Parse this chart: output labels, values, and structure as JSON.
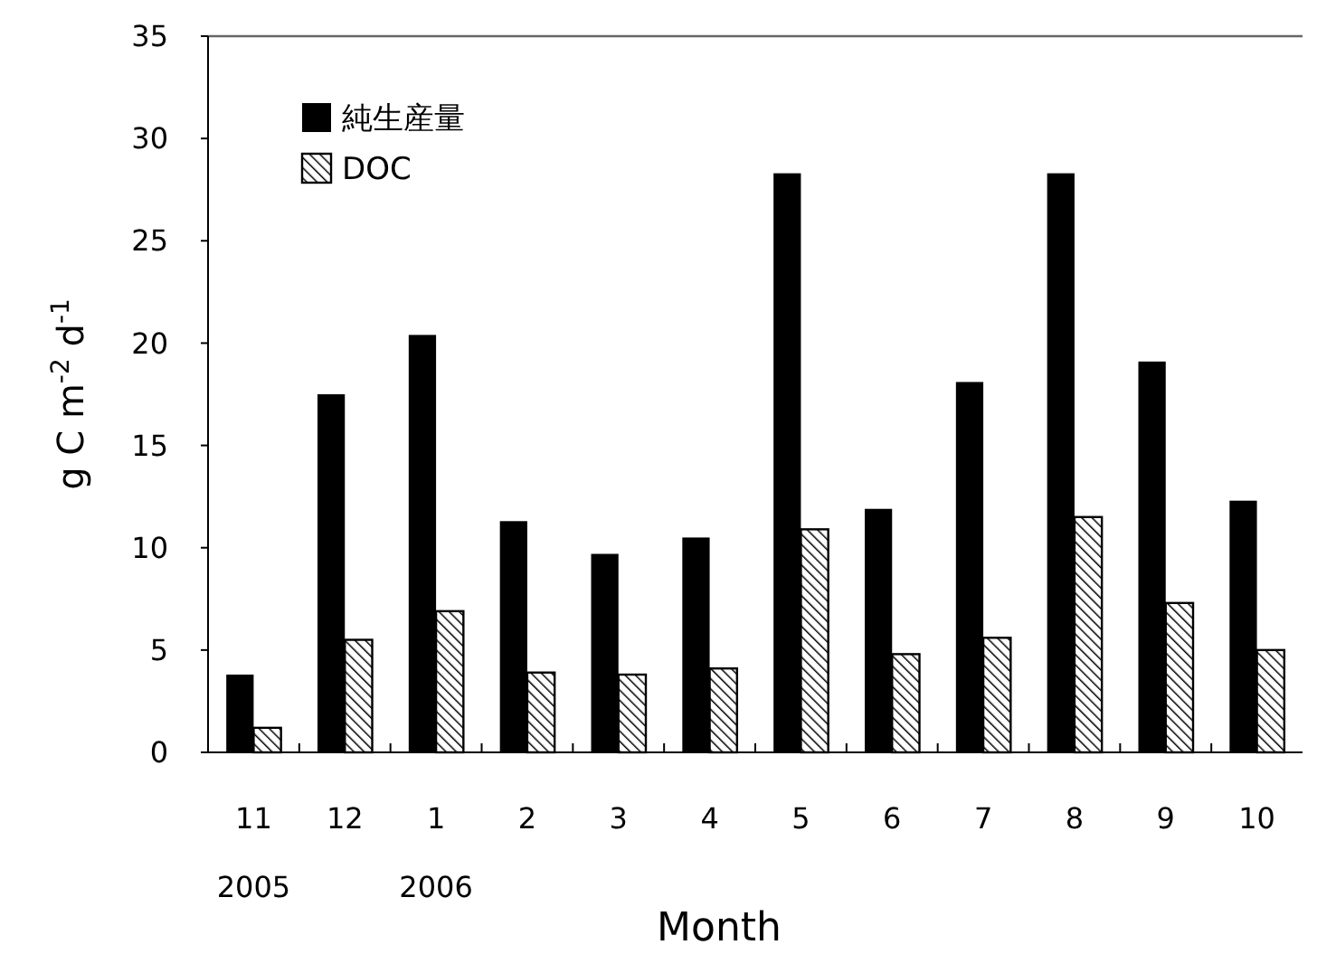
{
  "chart_data": {
    "type": "bar",
    "xlabel": "Month",
    "ylabel": "g C m$^{-2}$ d$^{-1}$",
    "categories": [
      "11\n2005",
      "12",
      "1\n2006",
      "2",
      "3",
      "4",
      "5",
      "6",
      "7",
      "8",
      "9",
      "10"
    ],
    "series": [
      {
        "name": "純生産量",
        "color": "#000000",
        "values": [
          3.8,
          17.5,
          20.4,
          11.3,
          9.7,
          10.5,
          28.3,
          11.9,
          18.1,
          28.3,
          19.1,
          12.3
        ]
      },
      {
        "name": "DOC",
        "color": "#000000",
        "values": [
          1.2,
          5.5,
          6.9,
          3.9,
          3.8,
          4.1,
          10.9,
          4.8,
          5.6,
          11.5,
          7.3,
          5.0
        ]
      }
    ],
    "ylim": [
      0,
      35
    ],
    "yticks": [
      0,
      5,
      10,
      15,
      20,
      25,
      30,
      35
    ],
    "grid": false,
    "legend": "top left"
  }
}
